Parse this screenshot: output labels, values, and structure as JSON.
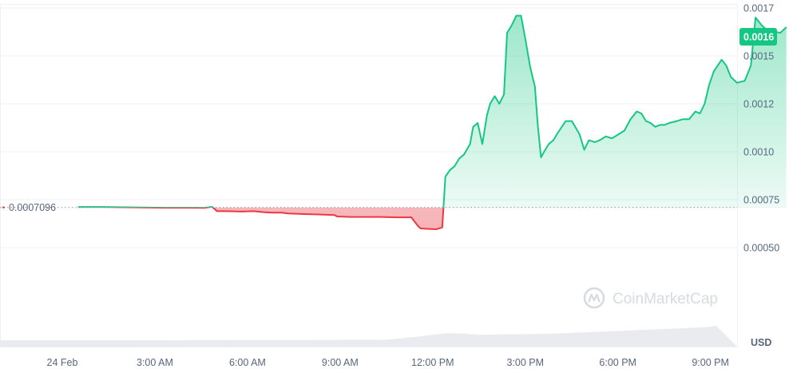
{
  "chart_data": {
    "type": "area",
    "currency": "USD",
    "watermark": "CoinMarketCap",
    "baseline": {
      "value": 0.0007096,
      "label": "0.0007096"
    },
    "current": {
      "value": 0.0016,
      "label": "0.0016"
    },
    "y_ticks": [
      {
        "value": 0.0005,
        "label": "0.00050"
      },
      {
        "value": 0.00075,
        "label": "0.00075"
      },
      {
        "value": 0.001,
        "label": "0.0010"
      },
      {
        "value": 0.00125,
        "label": "0.0012"
      },
      {
        "value": 0.0015,
        "label": "0.0015"
      },
      {
        "value": 0.00175,
        "label": "0.0017"
      }
    ],
    "x_ticks": [
      {
        "t": 0,
        "label": "24 Feb"
      },
      {
        "t": 3,
        "label": "3:00 AM"
      },
      {
        "t": 6,
        "label": "6:00 AM"
      },
      {
        "t": 9,
        "label": "9:00 AM"
      },
      {
        "t": 12,
        "label": "12:00 PM"
      },
      {
        "t": 15,
        "label": "3:00 PM"
      },
      {
        "t": 18,
        "label": "6:00 PM"
      },
      {
        "t": 21,
        "label": "9:00 PM"
      }
    ],
    "price": {
      "x": [
        0.2,
        1.0,
        2.0,
        3.0,
        4.0,
        4.3,
        4.5,
        4.55,
        4.7,
        5.0,
        5.5,
        5.9,
        6.2,
        6.5,
        6.8,
        7.0,
        7.5,
        8.0,
        8.5,
        8.6,
        8.7,
        9.0,
        9.5,
        10.0,
        10.5,
        11.0,
        11.2,
        11.3,
        11.5,
        11.8,
        12.0,
        12.1,
        12.25,
        12.4,
        12.55,
        12.7,
        12.9,
        13.0,
        13.15,
        13.3,
        13.45,
        13.55,
        13.7,
        13.85,
        14.0,
        14.1,
        14.25,
        14.4,
        14.55,
        14.7,
        14.85,
        15.0,
        15.1,
        15.2,
        15.3,
        15.45,
        15.6,
        15.75,
        16.0,
        16.2,
        16.45,
        16.6,
        16.75,
        16.95,
        17.1,
        17.3,
        17.5,
        17.7,
        17.9,
        18.1,
        18.3,
        18.45,
        18.6,
        18.75,
        18.9,
        19.05,
        19.2,
        19.35,
        19.6,
        19.8,
        20.0,
        20.2,
        20.35,
        20.5,
        20.65,
        20.8,
        21.05,
        21.2,
        21.35,
        21.55,
        21.8,
        22.0,
        22.15,
        22.35,
        22.55,
        22.7,
        22.95,
        23.15
      ],
      "y": [
        0.000712,
        0.000712,
        0.00071,
        0.000708,
        0.000708,
        0.000707,
        0.000712,
        0.000712,
        0.00069,
        0.00069,
        0.000688,
        0.00069,
        0.000685,
        0.000682,
        0.000682,
        0.000678,
        0.000675,
        0.000673,
        0.00067,
        0.000662,
        0.000662,
        0.00066,
        0.00066,
        0.00066,
        0.000658,
        0.000658,
        0.000615,
        0.0006,
        0.000598,
        0.000596,
        0.000605,
        0.00087,
        0.000905,
        0.000925,
        0.000965,
        0.000985,
        0.00104,
        0.00113,
        0.00115,
        0.00104,
        0.00119,
        0.00125,
        0.00129,
        0.00125,
        0.0013,
        0.00162,
        0.00166,
        0.00171,
        0.00171,
        0.00158,
        0.00144,
        0.00134,
        0.00113,
        0.00097,
        0.001,
        0.00104,
        0.00106,
        0.0011,
        0.00116,
        0.00116,
        0.00109,
        0.00101,
        0.00106,
        0.00105,
        0.00106,
        0.00108,
        0.00107,
        0.00109,
        0.00111,
        0.00117,
        0.00121,
        0.0012,
        0.00116,
        0.00115,
        0.00113,
        0.00114,
        0.00114,
        0.00115,
        0.00116,
        0.00117,
        0.00117,
        0.00121,
        0.0012,
        0.00125,
        0.00135,
        0.00142,
        0.00148,
        0.00145,
        0.00139,
        0.00136,
        0.00137,
        0.00145,
        0.0017,
        0.00166,
        0.00163,
        0.00163,
        0.00162,
        0.00165
      ]
    },
    "volume": {
      "x": [
        0.0,
        2.0,
        4.0,
        6.0,
        8.0,
        10.0,
        11.5,
        12.5,
        13.0,
        13.5,
        14.0,
        14.5,
        15.0,
        15.5,
        16.0,
        17.0,
        18.0,
        19.0,
        20.0,
        21.0,
        22.0,
        23.0,
        23.2
      ],
      "y": [
        0.0001,
        0.0001,
        0.0001,
        0.000101,
        0.000102,
        0.000104,
        0.000106,
        0.000108,
        0.00013,
        0.000155,
        0.000185,
        0.00021,
        0.000205,
        0.000185,
        0.00019,
        0.000195,
        0.000205,
        0.000225,
        0.000245,
        0.000265,
        0.000285,
        0.00031,
        0.00033
      ]
    },
    "colors": {
      "up": "#16c784",
      "down": "#ea3943",
      "grid": "#eff2f5",
      "volume": "#e9ebef",
      "axis_text": "#58667e"
    }
  }
}
